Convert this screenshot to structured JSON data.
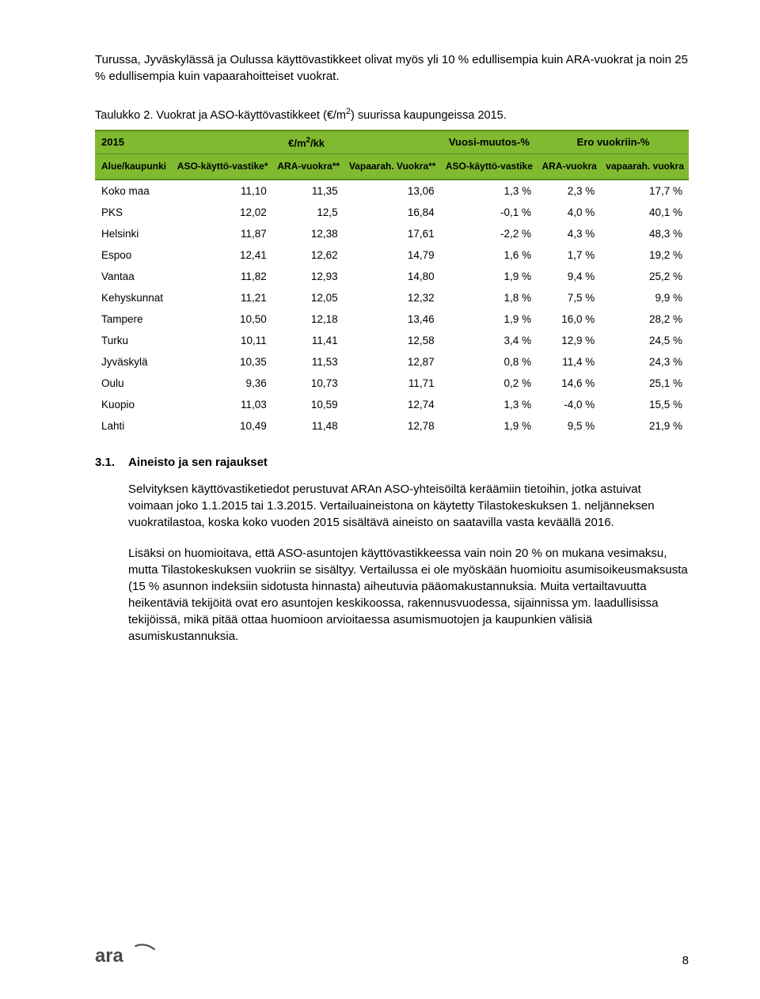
{
  "intro_para": "Turussa, Jyväskylässä ja Oulussa käyttövastikkeet olivat myös yli 10 % edullisempia kuin ARA-vuokrat ja noin 25 % edullisempia kuin vapaarahoitteiset vuokrat.",
  "table_caption_prefix": "Taulukko 2. Vuokrat ja ASO-käyttövastikkeet (€/m",
  "table_caption_sup": "2",
  "table_caption_suffix": ") suurissa kaupungeissa 2015.",
  "table": {
    "header_row1": {
      "year": "2015",
      "unit_prefix": "€/m",
      "unit_sup": "2",
      "unit_suffix": "/kk",
      "group2": "Vuosi-muutos-%",
      "group3": "Ero vuokriin-%"
    },
    "header_row2": {
      "c0": "Alue/kaupunki",
      "c1": "ASO-käyttö-vastike*",
      "c2": "ARA-vuokra**",
      "c3": "Vapaarah. Vuokra**",
      "c4": "ASO-käyttö-vastike",
      "c5": "ARA-vuokra",
      "c6": "vapaarah. vuokra"
    },
    "rows": [
      {
        "c0": "Koko maa",
        "c1": "11,10",
        "c2": "11,35",
        "c3": "13,06",
        "c4": "1,3 %",
        "c5": "2,3 %",
        "c6": "17,7 %"
      },
      {
        "c0": "PKS",
        "c1": "12,02",
        "c2": "12,5",
        "c3": "16,84",
        "c4": "-0,1 %",
        "c5": "4,0 %",
        "c6": "40,1 %"
      },
      {
        "c0": "Helsinki",
        "c1": "11,87",
        "c2": "12,38",
        "c3": "17,61",
        "c4": "-2,2 %",
        "c5": "4,3 %",
        "c6": "48,3 %"
      },
      {
        "c0": "Espoo",
        "c1": "12,41",
        "c2": "12,62",
        "c3": "14,79",
        "c4": "1,6 %",
        "c5": "1,7 %",
        "c6": "19,2 %"
      },
      {
        "c0": "Vantaa",
        "c1": "11,82",
        "c2": "12,93",
        "c3": "14,80",
        "c4": "1,9 %",
        "c5": "9,4 %",
        "c6": "25,2 %"
      },
      {
        "c0": "Kehyskunnat",
        "c1": "11,21",
        "c2": "12,05",
        "c3": "12,32",
        "c4": "1,8 %",
        "c5": "7,5 %",
        "c6": "9,9 %"
      },
      {
        "c0": "Tampere",
        "c1": "10,50",
        "c2": "12,18",
        "c3": "13,46",
        "c4": "1,9 %",
        "c5": "16,0 %",
        "c6": "28,2 %"
      },
      {
        "c0": "Turku",
        "c1": "10,11",
        "c2": "11,41",
        "c3": "12,58",
        "c4": "3,4 %",
        "c5": "12,9 %",
        "c6": "24,5 %"
      },
      {
        "c0": "Jyväskylä",
        "c1": "10,35",
        "c2": "11,53",
        "c3": "12,87",
        "c4": "0,8 %",
        "c5": "11,4 %",
        "c6": "24,3 %"
      },
      {
        "c0": "Oulu",
        "c1": "9,36",
        "c2": "10,73",
        "c3": "11,71",
        "c4": "0,2 %",
        "c5": "14,6 %",
        "c6": "25,1 %"
      },
      {
        "c0": "Kuopio",
        "c1": "11,03",
        "c2": "10,59",
        "c3": "12,74",
        "c4": "1,3 %",
        "c5": "-4,0 %",
        "c6": "15,5 %"
      },
      {
        "c0": "Lahti",
        "c1": "10,49",
        "c2": "11,48",
        "c3": "12,78",
        "c4": "1,9 %",
        "c5": "9,5 %",
        "c6": "21,9 %"
      }
    ],
    "colors": {
      "header_bg": "#7fba31",
      "header_border": "#5a8a1f"
    }
  },
  "section": {
    "num": "3.1.",
    "title": "Aineisto ja sen rajaukset"
  },
  "body_p1": "Selvityksen käyttövastiketiedot perustuvat ARAn ASO-yhteisöiltä keräämiin tietoihin, jotka astuivat voimaan joko 1.1.2015 tai 1.3.2015. Vertailuaineistona on käytetty Tilastokeskuksen 1. neljänneksen vuokratilastoa, koska koko vuoden 2015 sisältävä aineisto on saatavilla vasta keväällä 2016.",
  "body_p2": "Lisäksi on huomioitava, että ASO-asuntojen käyttövastikkeessa vain noin 20 % on mukana vesimaksu, mutta Tilastokeskuksen vuokriin se sisältyy. Vertailussa ei ole myöskään huomioitu asumisoikeusmaksusta (15 % asunnon indeksiin sidotusta hinnasta) aiheutuvia pääomakustannuksia. Muita vertailtavuutta heikentäviä tekijöitä ovat ero asuntojen keskikoossa, rakennusvuodessa, sijainnissa ym. laadullisissa tekijöissä, mikä pitää ottaa huomioon arvioitaessa asumismuotojen ja kaupunkien välisiä asumiskustannuksia.",
  "logo_text": "ara",
  "logo_color": "#4a4a4a",
  "page_number": "8"
}
